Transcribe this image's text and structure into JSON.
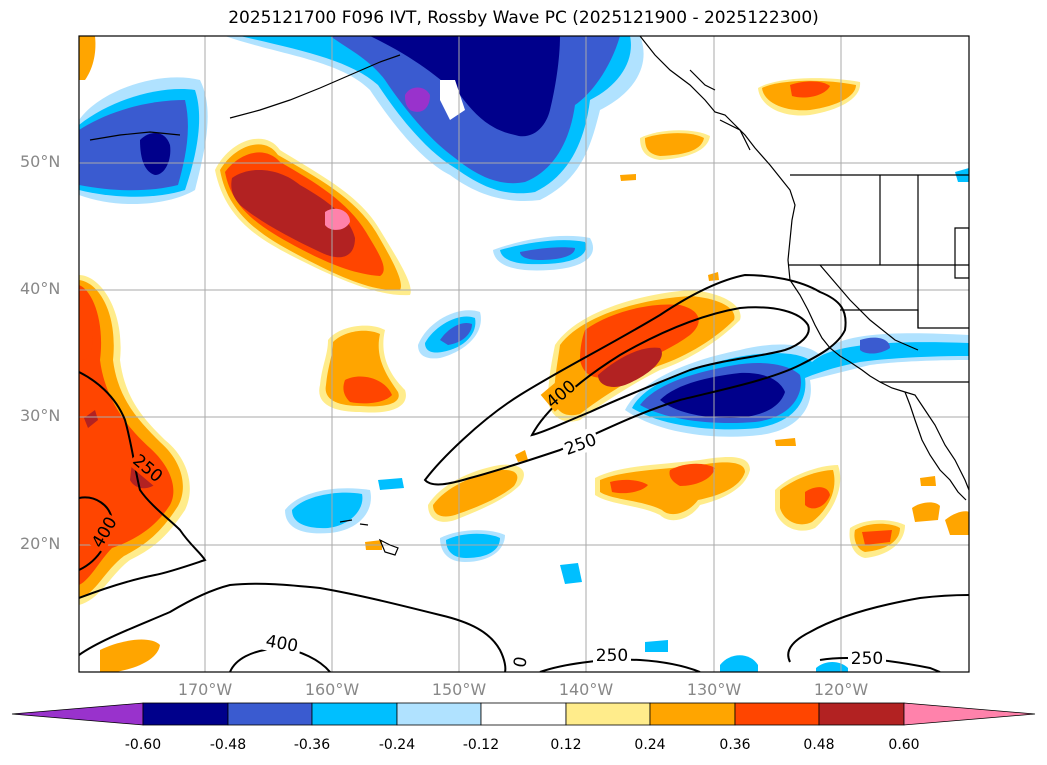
{
  "title": "2025121700 F096 IVT, Rossby Wave PC (2025121900 - 2025122300)",
  "lat_labels": [
    "50°N",
    "40°N",
    "30°N",
    "20°N"
  ],
  "lon_labels": [
    "170°W",
    "160°W",
    "150°W",
    "140°W",
    "130°W",
    "120°W"
  ],
  "contour_labels": [
    "400",
    "250",
    "250",
    "400",
    "400",
    "250",
    "250",
    "0"
  ],
  "colorbar": {
    "ticks": [
      "-0.60",
      "-0.48",
      "-0.36",
      "-0.24",
      "-0.12",
      "0.12",
      "0.24",
      "0.36",
      "0.48",
      "0.60"
    ],
    "colors": [
      "#9932cc",
      "#00008b",
      "#3a5bd0",
      "#00bfff",
      "#b0e2ff",
      "#ffffff",
      "#ffec8b",
      "#ffa500",
      "#ff4500",
      "#b22222",
      "#ff82ab"
    ]
  }
}
